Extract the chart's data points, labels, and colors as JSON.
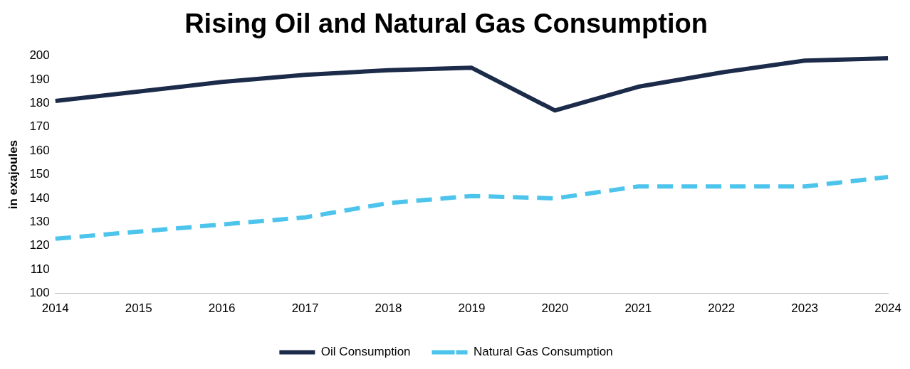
{
  "chart_data": {
    "type": "line",
    "title": "Rising Oil and Natural Gas Consumption",
    "ylabel": "in exajoules",
    "categories": [
      "2014",
      "2015",
      "2016",
      "2017",
      "2018",
      "2019",
      "2020",
      "2021",
      "2022",
      "2023",
      "2024"
    ],
    "series": [
      {
        "name": "Oil Consumption",
        "color": "#1c2b4a",
        "line_style": "solid",
        "values": [
          181,
          185,
          189,
          192,
          194,
          195,
          177,
          187,
          193,
          198,
          199
        ]
      },
      {
        "name": "Natural Gas Consumption",
        "color": "#4cc4ec",
        "line_style": "dashed",
        "values": [
          123,
          126,
          129,
          132,
          138,
          141,
          140,
          145,
          145,
          145,
          149
        ]
      }
    ],
    "ylim": [
      100,
      200
    ],
    "yticks": [
      100,
      110,
      120,
      130,
      140,
      150,
      160,
      170,
      180,
      190,
      200
    ],
    "grid": false,
    "legend": "bottom",
    "marker": "none"
  }
}
